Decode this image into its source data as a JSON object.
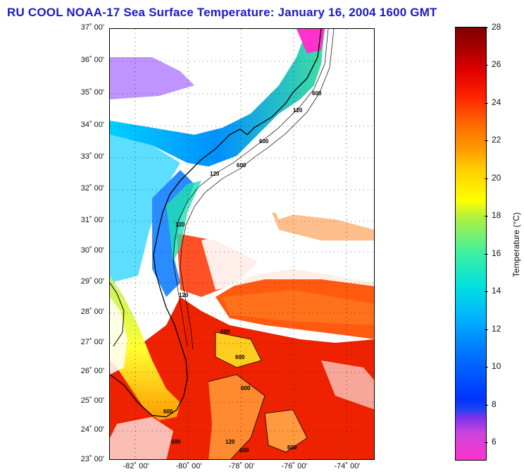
{
  "title": "RU COOL  NOAA-17  Sea Surface Temperature:  January 16, 2004 1600 GMT",
  "y_axis_labels": [
    "37˚ 00'",
    "36˚ 00'",
    "35˚ 00'",
    "34˚ 00'",
    "33˚ 00'",
    "32˚ 00'",
    "31˚ 00'",
    "30˚ 00'",
    "29˚ 00'",
    "28˚ 00'",
    "27˚ 00'",
    "26˚ 00'",
    "25˚ 00'",
    "24˚ 00'",
    "23˚ 00'"
  ],
  "x_axis_labels": [
    "-82˚ 00'",
    "-80˚ 00'",
    "-78˚ 00'",
    "-76˚ 00'",
    "-74˚ 00'"
  ],
  "colorbar": {
    "label": "Temperature (°C)",
    "ticks": [
      "28",
      "26",
      "24",
      "22",
      "20",
      "18",
      "16",
      "14",
      "12",
      "10",
      "8",
      "6"
    ],
    "range": [
      5,
      28
    ]
  },
  "isobath_labels": [
    "600",
    "120",
    "600",
    "120",
    "600",
    "120",
    "120",
    "600",
    "600",
    "600",
    "600",
    "120",
    "600",
    "600",
    "600"
  ]
}
